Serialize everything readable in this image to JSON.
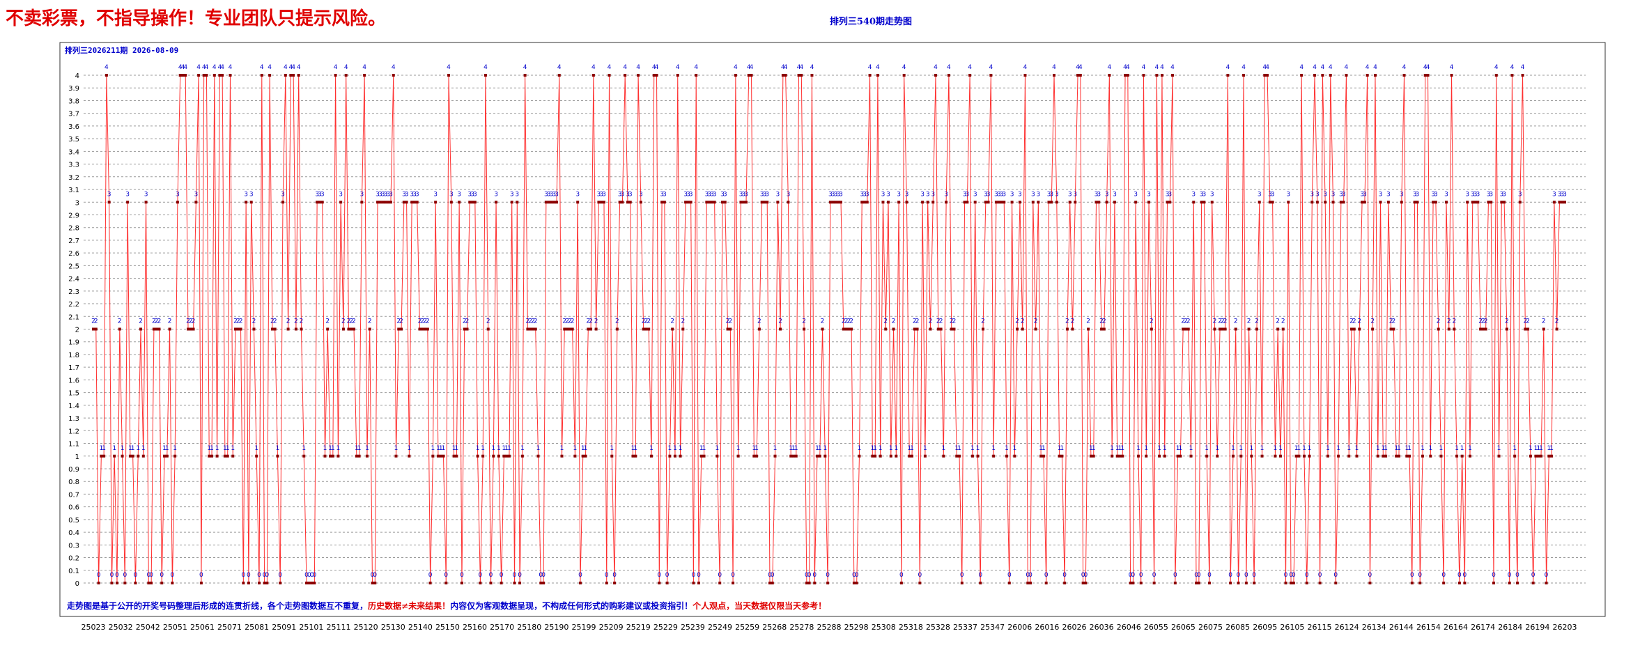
{
  "page": {
    "warning": "不卖彩票，不指导操作！专业团队只提示风险。",
    "title": "排列三540期走势图",
    "subtitle": "排列三2026211期  2026-08-09",
    "footer_parts": [
      {
        "text": "走势图是基于公开的开奖号码整理后形成的连贯折线，各个走势图数据互不重复，",
        "color": "#0000cc"
      },
      {
        "text": "历史数据≠未来结果！",
        "color": "#e00000"
      },
      {
        "text": "内容仅为客观数据呈现，不构成任何形式的购彩建议或投资指引！",
        "color": "#0000cc"
      },
      {
        "text": "个人观点，当天数据仅限当天参考！",
        "color": "#e00000"
      }
    ]
  },
  "colors": {
    "line": "#ff3030",
    "marker": "#8b0000",
    "point_label": "#0000cc",
    "grid": "#9a9a9a",
    "title": "#0000cc",
    "warning": "#e00000"
  },
  "chart_data": {
    "type": "line",
    "title": "排列三540期走势图",
    "ylim": [
      0,
      4
    ],
    "y_ticks": [
      "0",
      "0.1",
      "0.2",
      "0.3",
      "0.4",
      "0.5",
      "0.6",
      "0.7",
      "0.8",
      "0.9",
      "1",
      "1.1",
      "1.2",
      "1.3",
      "1.4",
      "1.5",
      "1.6",
      "1.7",
      "1.8",
      "1.9",
      "2",
      "2.1",
      "2.2",
      "2.3",
      "2.4",
      "2.5",
      "2.6",
      "2.7",
      "2.8",
      "2.9",
      "3",
      "3.1",
      "3.2",
      "3.3",
      "3.4",
      "3.5",
      "3.6",
      "3.7",
      "3.8",
      "3.9",
      "4"
    ],
    "x_tick_labels": [
      "25023",
      "25032",
      "25042",
      "25051",
      "25061",
      "25071",
      "25081",
      "25091",
      "25101",
      "25111",
      "25120",
      "25130",
      "25140",
      "25150",
      "25160",
      "25170",
      "25180",
      "25190",
      "25199",
      "25209",
      "25219",
      "25229",
      "25239",
      "25249",
      "25259",
      "25268",
      "25278",
      "25288",
      "25298",
      "25308",
      "25318",
      "25328",
      "25337",
      "25347",
      "26006",
      "26016",
      "26026",
      "26036",
      "26046",
      "26055",
      "26065",
      "26075",
      "26085",
      "26095",
      "26105",
      "26115",
      "26124",
      "26134",
      "26144",
      "26154",
      "26164",
      "26174",
      "26184",
      "26194",
      "26203"
    ],
    "grid": true,
    "series": [
      {
        "values": [
          2,
          2,
          0,
          1,
          1,
          4,
          3,
          0,
          1,
          0,
          2,
          1,
          0,
          3,
          1,
          1,
          0,
          1,
          2,
          1,
          3,
          0,
          0,
          2,
          2,
          2,
          0,
          1,
          1,
          2,
          0,
          1,
          3,
          4,
          4,
          4,
          2,
          2,
          2,
          3,
          4,
          0,
          4,
          4,
          1,
          1,
          4,
          1,
          4,
          4,
          1,
          1,
          4,
          1,
          2,
          2,
          2,
          0,
          3,
          0,
          3,
          2,
          1,
          0,
          4,
          0,
          0,
          4,
          2,
          2,
          1,
          0,
          3,
          4,
          2,
          4,
          4,
          2,
          4,
          2,
          1,
          0,
          0,
          0,
          0,
          3,
          3,
          3,
          1,
          2,
          1,
          1,
          4,
          1,
          3,
          2,
          4,
          2,
          2,
          2,
          1,
          1,
          3,
          4,
          1,
          2,
          0,
          0,
          3,
          3,
          3,
          3,
          3,
          3,
          4,
          1,
          2,
          2,
          3,
          3,
          1,
          3,
          3,
          3,
          2,
          2,
          2,
          2,
          0,
          1,
          3,
          1,
          1,
          1,
          0,
          4,
          3,
          1,
          1,
          3,
          0,
          2,
          2,
          3,
          3,
          3,
          1,
          0,
          1,
          4,
          2,
          0,
          1,
          3,
          1,
          0,
          1,
          1,
          1,
          3,
          0,
          3,
          0,
          1,
          4,
          2,
          2,
          2,
          2,
          1,
          0,
          0,
          3,
          3,
          3,
          3,
          3,
          4,
          1,
          2,
          2,
          2,
          2,
          1,
          3,
          0,
          1,
          1,
          2,
          2,
          4,
          2,
          3,
          3,
          3,
          0,
          4,
          1,
          0,
          2,
          3,
          3,
          4,
          3,
          3,
          1,
          1,
          4,
          3,
          2,
          2,
          2,
          1,
          4,
          4,
          0,
          3,
          3,
          0,
          1,
          2,
          1,
          4,
          1,
          2,
          3,
          3,
          3,
          0,
          4,
          0,
          1,
          1,
          3,
          3,
          3,
          3,
          1,
          0,
          3,
          3,
          2,
          2,
          0,
          4,
          1,
          3,
          3,
          3,
          4,
          4,
          1,
          1,
          2,
          3,
          3,
          3,
          0,
          0,
          1,
          3,
          2,
          4,
          4,
          3,
          1,
          1,
          1,
          4,
          4,
          2,
          0,
          0,
          4,
          0,
          1,
          1,
          2,
          1,
          0,
          3,
          3,
          3,
          3,
          3,
          2,
          2,
          2,
          2,
          0,
          0,
          1,
          3,
          3,
          3,
          4,
          1,
          1,
          4,
          1,
          3,
          2,
          3,
          1,
          2,
          1,
          3,
          0,
          4,
          3,
          1,
          1,
          2,
          2,
          0,
          3,
          1,
          3,
          2,
          3,
          4,
          2,
          2,
          1,
          3,
          4,
          2,
          2,
          1,
          1,
          0,
          3,
          3,
          4,
          1,
          3,
          1,
          0,
          2,
          3,
          3,
          4,
          1,
          3,
          3,
          3,
          3,
          1,
          0,
          3,
          1,
          2,
          3,
          2,
          4,
          0,
          0,
          3,
          2,
          3,
          1,
          1,
          0,
          3,
          3,
          4,
          3,
          1,
          1,
          0,
          2,
          3,
          2,
          3,
          4,
          4,
          0,
          0,
          2,
          1,
          1,
          3,
          3,
          2,
          2,
          3,
          4,
          1,
          3,
          1,
          1,
          1,
          4,
          4,
          0,
          0,
          3,
          1,
          0,
          4,
          1,
          3,
          2,
          0,
          4,
          1,
          4,
          1,
          3,
          3,
          4,
          0,
          1,
          1,
          2,
          2,
          2,
          1,
          3,
          0,
          0,
          3,
          3,
          1,
          0,
          3,
          2,
          1,
          2,
          2,
          2,
          4,
          0,
          1,
          2,
          0,
          1,
          4,
          0,
          2,
          1,
          0,
          2,
          3,
          1,
          4,
          4,
          3,
          3,
          1,
          2,
          1,
          2,
          0,
          3,
          0,
          0,
          1,
          1,
          4,
          1,
          0,
          1,
          3,
          4,
          3,
          0,
          4,
          3,
          1,
          4,
          3,
          0,
          1,
          3,
          3,
          4,
          1,
          2,
          2,
          1,
          2,
          3,
          3,
          4,
          0,
          2,
          4,
          1,
          3,
          1,
          1,
          3,
          2,
          2,
          1,
          1,
          3,
          4,
          1,
          1,
          0,
          3,
          3,
          0,
          1,
          4,
          4,
          1,
          3,
          3,
          2,
          1,
          0,
          3,
          2,
          4,
          2,
          1,
          0,
          1,
          0,
          3,
          1,
          3,
          3,
          3,
          2,
          2,
          2,
          3,
          3,
          0,
          4,
          1,
          3,
          3,
          2,
          0,
          4,
          1,
          0,
          3,
          4,
          2,
          2,
          1,
          0,
          1,
          1,
          1,
          2,
          0,
          1,
          1,
          3,
          2,
          3,
          3,
          3
        ]
      }
    ]
  }
}
